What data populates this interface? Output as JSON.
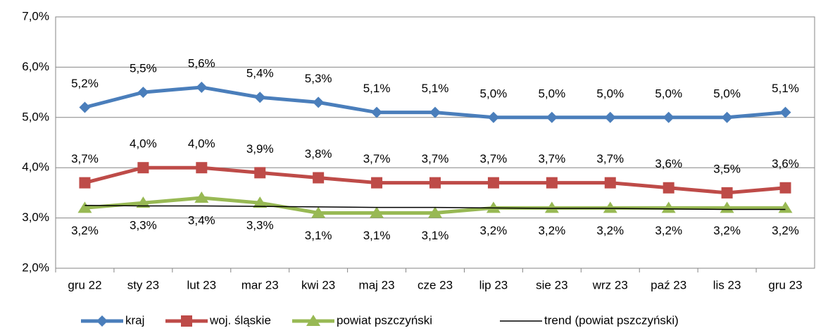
{
  "chart_data": {
    "type": "line",
    "categories": [
      "gru 22",
      "sty 23",
      "lut 23",
      "mar 23",
      "kwi 23",
      "maj 23",
      "cze 23",
      "lip 23",
      "sie 23",
      "wrz 23",
      "paź 23",
      "lis 23",
      "gru 23"
    ],
    "ylim": [
      2,
      7
    ],
    "yticks": [
      {
        "value": 2,
        "label": "2,0%"
      },
      {
        "value": 3,
        "label": "3,0%"
      },
      {
        "value": 4,
        "label": "4,0%"
      },
      {
        "value": 5,
        "label": "5,0%"
      },
      {
        "value": 6,
        "label": "6,0%"
      },
      {
        "value": 7,
        "label": "7,0%"
      }
    ],
    "grid": true,
    "legend": "bottom",
    "series": [
      {
        "name": "kraj",
        "color": "#4a7ebb",
        "marker": "diamond",
        "label_position": "above",
        "values": [
          5.2,
          5.5,
          5.6,
          5.4,
          5.3,
          5.1,
          5.1,
          5.0,
          5.0,
          5.0,
          5.0,
          5.0,
          5.1
        ],
        "value_labels": [
          "5,2%",
          "5,5%",
          "5,6%",
          "5,4%",
          "5,3%",
          "5,1%",
          "5,1%",
          "5,0%",
          "5,0%",
          "5,0%",
          "5,0%",
          "5,0%",
          "5,1%"
        ]
      },
      {
        "name": "woj. śląskie",
        "color": "#be4b48",
        "marker": "square",
        "label_position": "above",
        "values": [
          3.7,
          4.0,
          4.0,
          3.9,
          3.8,
          3.7,
          3.7,
          3.7,
          3.7,
          3.7,
          3.6,
          3.5,
          3.6
        ],
        "value_labels": [
          "3,7%",
          "4,0%",
          "4,0%",
          "3,9%",
          "3,8%",
          "3,7%",
          "3,7%",
          "3,7%",
          "3,7%",
          "3,7%",
          "3,6%",
          "3,5%",
          "3,6%"
        ]
      },
      {
        "name": "powiat pszczyński",
        "color": "#98b954",
        "marker": "triangle",
        "label_position": "below",
        "values": [
          3.2,
          3.3,
          3.4,
          3.3,
          3.1,
          3.1,
          3.1,
          3.2,
          3.2,
          3.2,
          3.2,
          3.2,
          3.2
        ],
        "value_labels": [
          "3,2%",
          "3,3%",
          "3,4%",
          "3,3%",
          "3,1%",
          "3,1%",
          "3,1%",
          "3,2%",
          "3,2%",
          "3,2%",
          "3,2%",
          "3,2%",
          "3,2%"
        ]
      },
      {
        "name": "trend (powiat pszczyński)",
        "color": "#000000",
        "marker": "none",
        "values": [
          3.25,
          3.24,
          3.24,
          3.23,
          3.22,
          3.21,
          3.21,
          3.2,
          3.19,
          3.19,
          3.18,
          3.17,
          3.17
        ]
      }
    ]
  }
}
